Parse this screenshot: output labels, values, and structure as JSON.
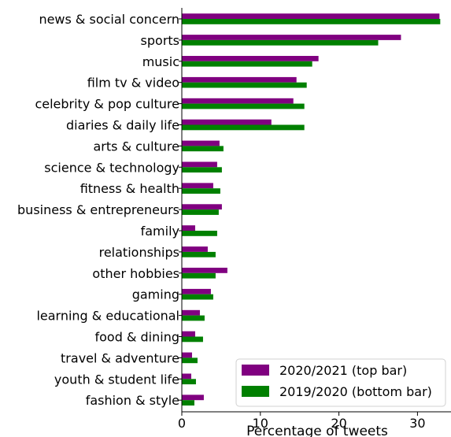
{
  "chart_data": {
    "type": "bar",
    "orientation": "horizontal",
    "xlabel": "Percentage of tweets",
    "ylabel": "",
    "title": "",
    "xlim": [
      0,
      34.5
    ],
    "xticks": [
      0,
      10,
      20,
      30
    ],
    "grid": false,
    "legend_position": "bottom-right",
    "categories": [
      "news & social concern",
      "sports",
      "music",
      "film tv & video",
      "celebrity & pop culture",
      "diaries & daily life",
      "arts & culture",
      "science & technology",
      "fitness & health",
      "business & entrepreneurs",
      "family",
      "relationships",
      "other hobbies",
      "gaming",
      "learning & educational",
      "food & dining",
      "travel & adventure",
      "youth & student life",
      "fashion & style"
    ],
    "series": [
      {
        "name": "2020/2021 (top bar)",
        "color": "#800080",
        "values": [
          32.8,
          27.9,
          17.4,
          14.6,
          14.2,
          11.4,
          4.8,
          4.5,
          4.0,
          5.1,
          1.7,
          3.3,
          5.8,
          3.7,
          2.3,
          1.7,
          1.3,
          1.2,
          2.8
        ]
      },
      {
        "name": "2019/2020 (bottom bar)",
        "color": "#008000",
        "values": [
          32.9,
          25.0,
          16.6,
          15.9,
          15.6,
          15.6,
          5.3,
          5.1,
          4.9,
          4.7,
          4.5,
          4.3,
          4.3,
          4.0,
          2.9,
          2.7,
          2.0,
          1.8,
          1.6
        ]
      }
    ]
  }
}
